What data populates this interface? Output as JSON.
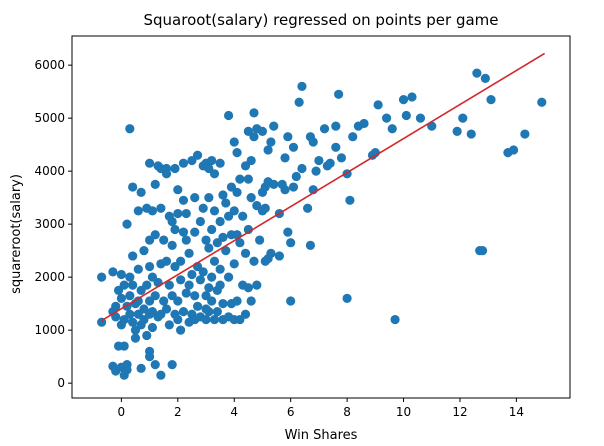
{
  "chart_data": {
    "type": "scatter",
    "title": "Squaroot(salary) regressed on points per game",
    "xlabel": "Win Shares",
    "ylabel": "squareroot(salary)",
    "xlim": [
      -1.75,
      15.9
    ],
    "ylim": [
      -280,
      6550
    ],
    "xticks": [
      0,
      2,
      4,
      6,
      8,
      10,
      12,
      14
    ],
    "yticks": [
      0,
      1000,
      2000,
      3000,
      4000,
      5000,
      6000
    ],
    "grid": false,
    "colors": {
      "points": "#1f77b4",
      "fit_line": "#d62728"
    },
    "fit_line": {
      "x": [
        -0.7,
        15.0
      ],
      "y": [
        1180,
        6220
      ]
    },
    "points": [
      [
        -0.7,
        1150
      ],
      [
        -0.7,
        2000
      ],
      [
        -0.3,
        1350
      ],
      [
        -0.3,
        2100
      ],
      [
        -0.2,
        1450
      ],
      [
        -0.2,
        1250
      ],
      [
        -0.3,
        320
      ],
      [
        -0.2,
        230
      ],
      [
        -0.1,
        1750
      ],
      [
        -0.1,
        700
      ],
      [
        0.0,
        300
      ],
      [
        0.0,
        2050
      ],
      [
        0.0,
        1100
      ],
      [
        0.0,
        1600
      ],
      [
        0.1,
        700
      ],
      [
        0.1,
        1200
      ],
      [
        0.1,
        150
      ],
      [
        0.1,
        1850
      ],
      [
        0.2,
        250
      ],
      [
        0.2,
        1450
      ],
      [
        0.2,
        3000
      ],
      [
        0.2,
        350
      ],
      [
        0.3,
        1650
      ],
      [
        0.3,
        1300
      ],
      [
        0.3,
        4800
      ],
      [
        0.3,
        2000
      ],
      [
        0.4,
        2400
      ],
      [
        0.4,
        1150
      ],
      [
        0.4,
        3700
      ],
      [
        0.4,
        1850
      ],
      [
        0.5,
        1500
      ],
      [
        0.5,
        1000
      ],
      [
        0.5,
        850
      ],
      [
        0.6,
        1550
      ],
      [
        0.6,
        1300
      ],
      [
        0.6,
        2150
      ],
      [
        0.6,
        3250
      ],
      [
        0.7,
        1750
      ],
      [
        0.7,
        3600
      ],
      [
        0.7,
        1100
      ],
      [
        0.7,
        280
      ],
      [
        0.8,
        1400
      ],
      [
        0.8,
        2500
      ],
      [
        0.8,
        1200
      ],
      [
        0.9,
        1850
      ],
      [
        0.9,
        900
      ],
      [
        0.9,
        3300
      ],
      [
        1.0,
        1300
      ],
      [
        1.0,
        2700
      ],
      [
        1.0,
        1550
      ],
      [
        1.0,
        4150
      ],
      [
        1.0,
        2200
      ],
      [
        1.0,
        600
      ],
      [
        1.0,
        500
      ],
      [
        1.1,
        1350
      ],
      [
        1.1,
        1050
      ],
      [
        1.1,
        3250
      ],
      [
        1.1,
        2000
      ],
      [
        1.2,
        1650
      ],
      [
        1.2,
        2800
      ],
      [
        1.2,
        3750
      ],
      [
        1.2,
        350
      ],
      [
        1.3,
        4100
      ],
      [
        1.3,
        1250
      ],
      [
        1.3,
        1900
      ],
      [
        1.4,
        2250
      ],
      [
        1.4,
        3300
      ],
      [
        1.4,
        4050
      ],
      [
        1.4,
        1300
      ],
      [
        1.4,
        150
      ],
      [
        1.5,
        1550
      ],
      [
        1.5,
        2700
      ],
      [
        1.6,
        1400
      ],
      [
        1.6,
        2300
      ],
      [
        1.6,
        4050
      ],
      [
        1.6,
        3950
      ],
      [
        1.7,
        3150
      ],
      [
        1.7,
        1850
      ],
      [
        1.7,
        1100
      ],
      [
        1.8,
        2600
      ],
      [
        1.8,
        1650
      ],
      [
        1.8,
        3050
      ],
      [
        1.8,
        350
      ],
      [
        1.9,
        1300
      ],
      [
        1.9,
        2200
      ],
      [
        1.9,
        4050
      ],
      [
        1.9,
        2900
      ],
      [
        2.0,
        1200
      ],
      [
        2.0,
        3650
      ],
      [
        2.0,
        1550
      ],
      [
        2.0,
        3200
      ],
      [
        2.1,
        2300
      ],
      [
        2.1,
        1950
      ],
      [
        2.1,
        1000
      ],
      [
        2.2,
        3450
      ],
      [
        2.2,
        2850
      ],
      [
        2.2,
        4150
      ],
      [
        2.2,
        1350
      ],
      [
        2.3,
        1700
      ],
      [
        2.3,
        2700
      ],
      [
        2.3,
        3200
      ],
      [
        2.4,
        1850
      ],
      [
        2.4,
        1150
      ],
      [
        2.4,
        2450
      ],
      [
        2.5,
        2050
      ],
      [
        2.5,
        4200
      ],
      [
        2.5,
        1300
      ],
      [
        2.6,
        1650
      ],
      [
        2.6,
        2850
      ],
      [
        2.6,
        3500
      ],
      [
        2.6,
        1200
      ],
      [
        2.7,
        2200
      ],
      [
        2.7,
        1450
      ],
      [
        2.7,
        4300
      ],
      [
        2.8,
        1950
      ],
      [
        2.8,
        3050
      ],
      [
        2.8,
        1250
      ],
      [
        2.9,
        2100
      ],
      [
        2.9,
        3300
      ],
      [
        2.9,
        4100
      ],
      [
        3.0,
        1400
      ],
      [
        3.0,
        1650
      ],
      [
        3.0,
        2700
      ],
      [
        3.0,
        1200
      ],
      [
        3.0,
        4150
      ],
      [
        3.1,
        3500
      ],
      [
        3.1,
        2550
      ],
      [
        3.1,
        1800
      ],
      [
        3.1,
        4050
      ],
      [
        3.1,
        1350
      ],
      [
        3.2,
        2000
      ],
      [
        3.2,
        2900
      ],
      [
        3.2,
        4200
      ],
      [
        3.2,
        1550
      ],
      [
        3.3,
        1200
      ],
      [
        3.3,
        2300
      ],
      [
        3.3,
        3250
      ],
      [
        3.3,
        3950
      ],
      [
        3.4,
        1750
      ],
      [
        3.4,
        2650
      ],
      [
        3.4,
        1350
      ],
      [
        3.5,
        2150
      ],
      [
        3.5,
        3050
      ],
      [
        3.5,
        4150
      ],
      [
        3.5,
        1850
      ],
      [
        3.6,
        1500
      ],
      [
        3.6,
        2750
      ],
      [
        3.6,
        3550
      ],
      [
        3.6,
        1200
      ],
      [
        3.7,
        2500
      ],
      [
        3.7,
        3400
      ],
      [
        3.8,
        2000
      ],
      [
        3.8,
        1250
      ],
      [
        3.8,
        3150
      ],
      [
        3.8,
        5050
      ],
      [
        3.9,
        1500
      ],
      [
        3.9,
        2800
      ],
      [
        3.9,
        3700
      ],
      [
        4.0,
        2250
      ],
      [
        4.0,
        1200
      ],
      [
        4.0,
        3250
      ],
      [
        4.0,
        4550
      ],
      [
        4.1,
        2800
      ],
      [
        4.1,
        1550
      ],
      [
        4.1,
        3600
      ],
      [
        4.1,
        4350
      ],
      [
        4.2,
        1200
      ],
      [
        4.2,
        2650
      ],
      [
        4.2,
        3850
      ],
      [
        4.3,
        1850
      ],
      [
        4.3,
        3150
      ],
      [
        4.4,
        2450
      ],
      [
        4.4,
        1300
      ],
      [
        4.4,
        4100
      ],
      [
        4.5,
        1800
      ],
      [
        4.5,
        2900
      ],
      [
        4.5,
        3850
      ],
      [
        4.5,
        4750
      ],
      [
        4.6,
        1550
      ],
      [
        4.6,
        3500
      ],
      [
        4.6,
        4200
      ],
      [
        4.7,
        5100
      ],
      [
        4.7,
        2300
      ],
      [
        4.7,
        4650
      ],
      [
        4.8,
        3350
      ],
      [
        4.8,
        1850
      ],
      [
        4.8,
        4800
      ],
      [
        4.9,
        2700
      ],
      [
        5.0,
        3600
      ],
      [
        5.0,
        3250
      ],
      [
        5.0,
        4750
      ],
      [
        5.1,
        3700
      ],
      [
        5.1,
        3300
      ],
      [
        5.1,
        2300
      ],
      [
        5.2,
        3800
      ],
      [
        5.2,
        4400
      ],
      [
        5.2,
        2350
      ],
      [
        5.3,
        4550
      ],
      [
        5.3,
        2450
      ],
      [
        5.4,
        3750
      ],
      [
        5.4,
        4850
      ],
      [
        5.6,
        3200
      ],
      [
        5.6,
        2400
      ],
      [
        5.7,
        3750
      ],
      [
        5.8,
        3650
      ],
      [
        5.8,
        4250
      ],
      [
        5.9,
        2850
      ],
      [
        5.9,
        4650
      ],
      [
        6.0,
        2650
      ],
      [
        6.0,
        1550
      ],
      [
        6.1,
        3700
      ],
      [
        6.1,
        4450
      ],
      [
        6.2,
        3900
      ],
      [
        6.3,
        5300
      ],
      [
        6.4,
        5600
      ],
      [
        6.4,
        4050
      ],
      [
        6.6,
        3300
      ],
      [
        6.7,
        4650
      ],
      [
        6.7,
        2600
      ],
      [
        6.8,
        3650
      ],
      [
        6.8,
        4550
      ],
      [
        6.9,
        4000
      ],
      [
        7.0,
        4200
      ],
      [
        7.2,
        4800
      ],
      [
        7.3,
        4100
      ],
      [
        7.4,
        4150
      ],
      [
        7.6,
        4450
      ],
      [
        7.6,
        4850
      ],
      [
        7.7,
        5450
      ],
      [
        7.8,
        4250
      ],
      [
        8.0,
        3950
      ],
      [
        8.0,
        1600
      ],
      [
        8.1,
        3450
      ],
      [
        8.2,
        4650
      ],
      [
        8.4,
        4850
      ],
      [
        8.6,
        4900
      ],
      [
        8.9,
        4300
      ],
      [
        9.0,
        4350
      ],
      [
        9.1,
        5250
      ],
      [
        9.4,
        5000
      ],
      [
        9.6,
        4800
      ],
      [
        9.7,
        1200
      ],
      [
        10.0,
        5350
      ],
      [
        10.1,
        5050
      ],
      [
        10.3,
        5400
      ],
      [
        10.6,
        5000
      ],
      [
        11.0,
        4850
      ],
      [
        11.9,
        4750
      ],
      [
        12.1,
        5000
      ],
      [
        12.4,
        4700
      ],
      [
        12.6,
        5850
      ],
      [
        12.7,
        2500
      ],
      [
        12.8,
        2500
      ],
      [
        12.9,
        5750
      ],
      [
        13.1,
        5350
      ],
      [
        13.7,
        4350
      ],
      [
        13.9,
        4400
      ],
      [
        14.3,
        4700
      ],
      [
        14.9,
        5300
      ]
    ]
  }
}
